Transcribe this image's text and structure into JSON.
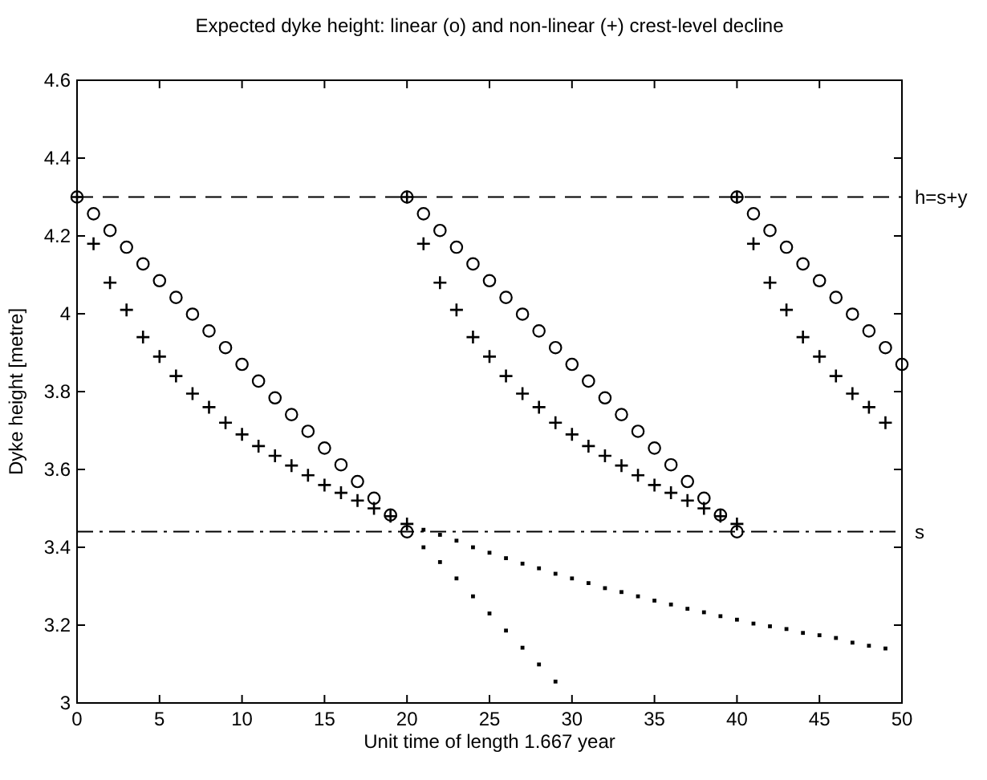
{
  "chart_data": {
    "type": "scatter",
    "title": "Expected dyke height: linear (o) and non-linear (+) crest-level decline",
    "xlabel": "Unit time of length 1.667 year",
    "ylabel": "Dyke height [metre]",
    "xlim": [
      0,
      50
    ],
    "xticks": [
      0,
      5,
      10,
      15,
      20,
      25,
      30,
      35,
      40,
      45,
      50
    ],
    "ylim": [
      3,
      4.6
    ],
    "yticks": [
      3,
      3.2,
      3.4,
      3.6,
      3.8,
      4,
      4.2,
      4.4,
      4.6
    ],
    "grid": false,
    "ref_lines": [
      {
        "axis": "y",
        "value": 4.3,
        "label": "h=s+y",
        "color": "#000000",
        "line_style": "dashed"
      },
      {
        "axis": "y",
        "value": 3.44,
        "label": "s",
        "color": "#000000",
        "line_style": "dashdot"
      }
    ],
    "series": [
      {
        "marker": "circle",
        "color": "#000000",
        "x": [
          0,
          1,
          2,
          3,
          4,
          5,
          6,
          7,
          8,
          9,
          10,
          11,
          12,
          13,
          14,
          15,
          16,
          17,
          18,
          19,
          20,
          20,
          21,
          22,
          23,
          24,
          25,
          26,
          27,
          28,
          29,
          30,
          31,
          32,
          33,
          34,
          35,
          36,
          37,
          38,
          39,
          40,
          40,
          41,
          42,
          43,
          44,
          45,
          46,
          47,
          48,
          49,
          50
        ],
        "values": [
          4.3,
          4.257,
          4.214,
          4.171,
          4.128,
          4.085,
          4.042,
          3.999,
          3.956,
          3.913,
          3.87,
          3.827,
          3.784,
          3.741,
          3.698,
          3.655,
          3.612,
          3.569,
          3.526,
          3.483,
          3.44,
          4.3,
          4.257,
          4.214,
          4.171,
          4.128,
          4.085,
          4.042,
          3.999,
          3.956,
          3.913,
          3.87,
          3.827,
          3.784,
          3.741,
          3.698,
          3.655,
          3.612,
          3.569,
          3.526,
          3.483,
          3.44,
          4.3,
          4.257,
          4.214,
          4.171,
          4.128,
          4.085,
          4.042,
          3.999,
          3.956,
          3.913,
          3.87
        ]
      },
      {
        "marker": "cross",
        "color": "#000000",
        "x": [
          0,
          1,
          2,
          3,
          4,
          5,
          6,
          7,
          8,
          9,
          10,
          11,
          12,
          13,
          14,
          15,
          16,
          17,
          18,
          19,
          20,
          20,
          21,
          22,
          23,
          24,
          25,
          26,
          27,
          28,
          29,
          30,
          31,
          32,
          33,
          34,
          35,
          36,
          37,
          38,
          39,
          40,
          40,
          41,
          42,
          43,
          44,
          45,
          46,
          47,
          48,
          49
        ],
        "values": [
          4.3,
          4.18,
          4.08,
          4.01,
          3.94,
          3.89,
          3.84,
          3.795,
          3.76,
          3.72,
          3.69,
          3.66,
          3.635,
          3.61,
          3.585,
          3.56,
          3.54,
          3.52,
          3.5,
          3.48,
          3.46,
          4.3,
          4.18,
          4.08,
          4.01,
          3.94,
          3.89,
          3.84,
          3.795,
          3.76,
          3.72,
          3.69,
          3.66,
          3.635,
          3.61,
          3.585,
          3.56,
          3.54,
          3.52,
          3.5,
          3.48,
          3.46,
          4.3,
          4.18,
          4.08,
          4.01,
          3.94,
          3.89,
          3.84,
          3.795,
          3.76,
          3.72
        ]
      },
      {
        "marker": "square",
        "color": "#000000",
        "x": [
          21,
          22,
          23,
          24,
          25,
          26,
          27,
          28,
          29,
          30,
          31,
          32,
          33,
          34,
          35,
          36,
          37,
          38,
          39,
          40,
          41,
          42,
          43,
          44,
          45,
          46,
          47,
          48,
          49
        ],
        "values": [
          3.445,
          3.432,
          3.417,
          3.4,
          3.386,
          3.372,
          3.358,
          3.346,
          3.332,
          3.32,
          3.308,
          3.295,
          3.285,
          3.274,
          3.263,
          3.253,
          3.242,
          3.233,
          3.223,
          3.214,
          3.204,
          3.197,
          3.19,
          3.18,
          3.174,
          3.167,
          3.155,
          3.147,
          3.14
        ]
      },
      {
        "marker": "square",
        "color": "#000000",
        "x": [
          21,
          22,
          23,
          24,
          25,
          26,
          27,
          28,
          29
        ],
        "values": [
          3.4,
          3.362,
          3.32,
          3.274,
          3.23,
          3.186,
          3.142,
          3.099,
          3.055
        ]
      }
    ]
  }
}
